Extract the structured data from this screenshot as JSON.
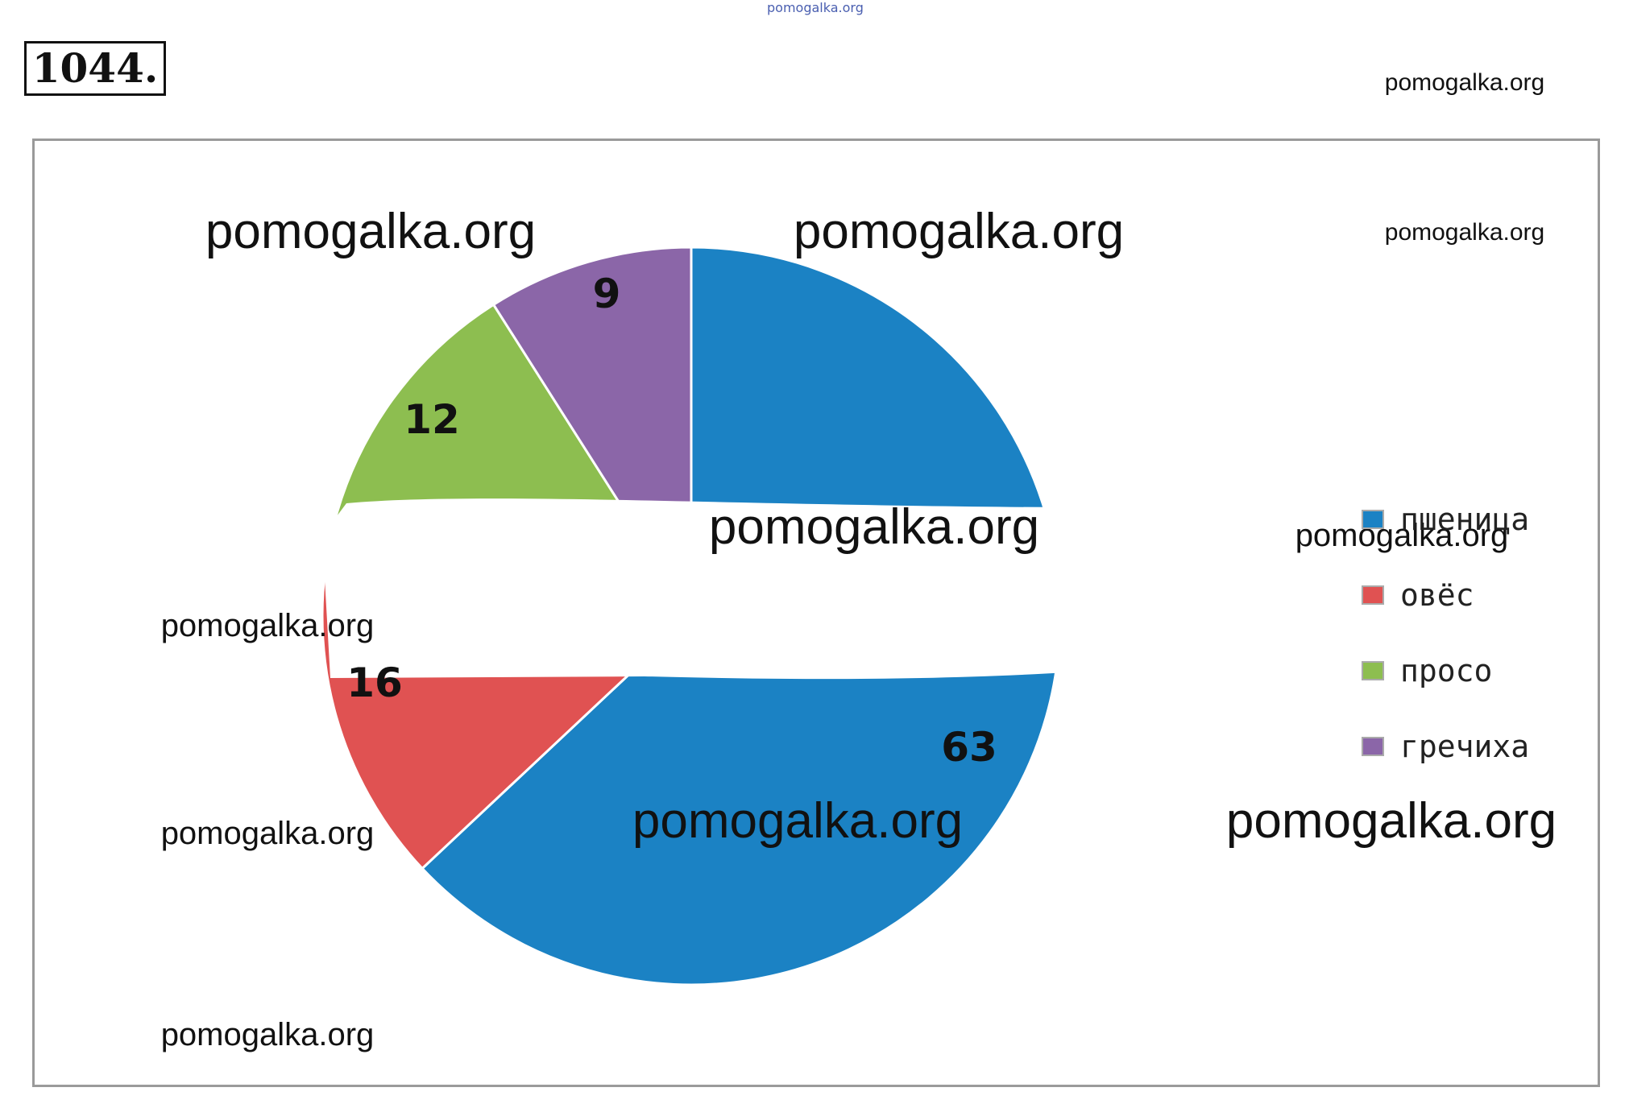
{
  "header": {
    "top_watermark": "pomogalka.org",
    "problem_number": "1044."
  },
  "watermarks": [
    "pomogalka.org",
    "pomogalka.org",
    "pomogalka.org",
    "pomogalka.org",
    "pomogalka.org",
    "pomogalka.org",
    "pomogalka.org",
    "pomogalka.org",
    "pomogalka.org",
    "pomogalka.org",
    "pomogalka.org"
  ],
  "chart_data": {
    "type": "pie",
    "title": "",
    "categories": [
      "пшеница",
      "овёс",
      "просо",
      "гречиха"
    ],
    "values": [
      63,
      16,
      12,
      9
    ],
    "data_labels": [
      "63",
      "16",
      "12",
      "9"
    ],
    "colors": [
      "#1b82c4",
      "#e05252",
      "#8dbe50",
      "#8b66a8"
    ],
    "start": "12 o'clock",
    "direction": "clockwise",
    "legend_position": "right"
  }
}
